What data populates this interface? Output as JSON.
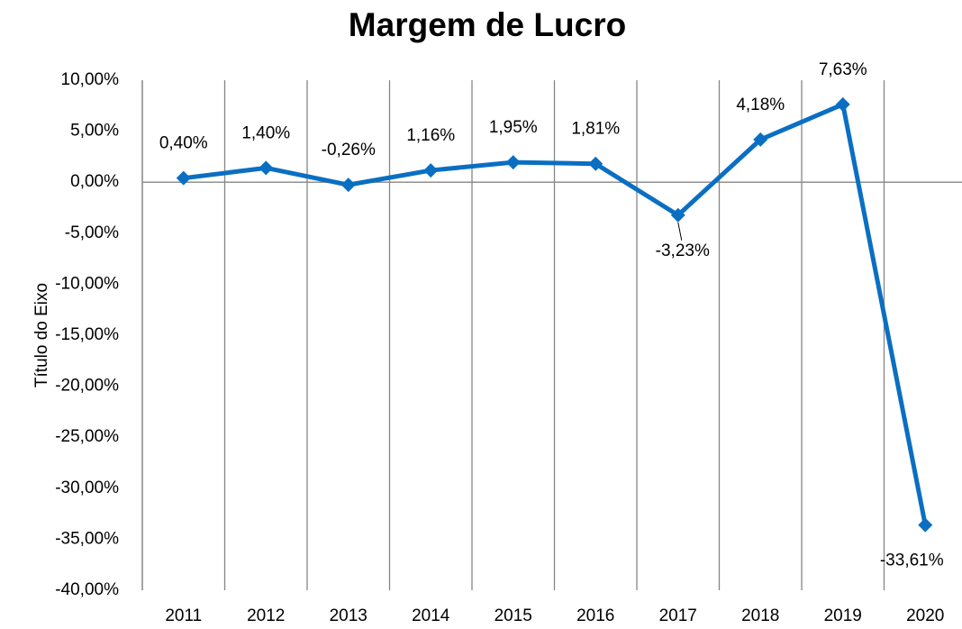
{
  "chart_data": {
    "type": "line",
    "title": "Margem de Lucro",
    "y_label": "Título do Eixo",
    "categories": [
      "2011",
      "2012",
      "2013",
      "2014",
      "2015",
      "2016",
      "2017",
      "2018",
      "2019",
      "2020"
    ],
    "values": [
      0.4,
      1.4,
      -0.26,
      1.16,
      1.95,
      1.81,
      -3.23,
      4.18,
      7.63,
      -33.61
    ],
    "value_labels": [
      "0,40%",
      "1,40%",
      "-0,26%",
      "1,16%",
      "1,95%",
      "1,81%",
      "-3,23%",
      "4,18%",
      "7,63%",
      "-33,61%"
    ],
    "color": "#0a6fc2",
    "ylim": [
      -40,
      10
    ],
    "yticks": [
      {
        "value": 10,
        "label": "10,00%"
      },
      {
        "value": 5,
        "label": "5,00%"
      },
      {
        "value": 0,
        "label": "0,00%"
      },
      {
        "value": -5,
        "label": "-5,00%"
      },
      {
        "value": -10,
        "label": "-10,00%"
      },
      {
        "value": -15,
        "label": "-15,00%"
      },
      {
        "value": -20,
        "label": "-20,00%"
      },
      {
        "value": -25,
        "label": "-25,00%"
      },
      {
        "value": -30,
        "label": "-30,00%"
      },
      {
        "value": -35,
        "label": "-35,00%"
      },
      {
        "value": -40,
        "label": "-40,00%"
      }
    ]
  }
}
